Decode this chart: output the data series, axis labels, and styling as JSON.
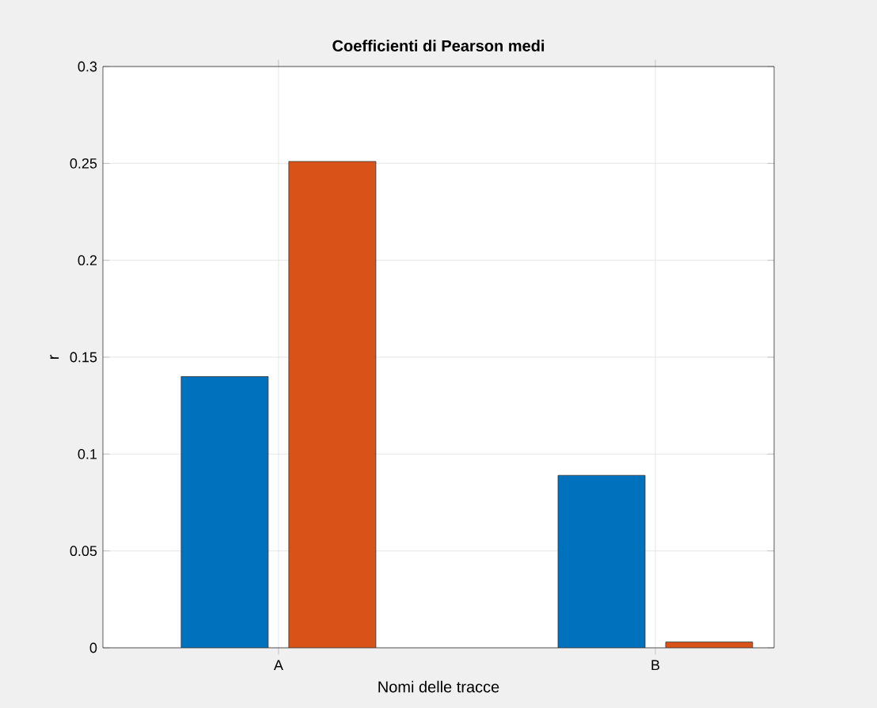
{
  "chart_data": {
    "type": "bar",
    "title": "Coefficienti di Pearson medi",
    "xlabel": "Nomi delle tracce",
    "ylabel": "r",
    "categories": [
      "A",
      "B"
    ],
    "series": [
      {
        "color": "#0072bd",
        "values": [
          0.14,
          0.089
        ]
      },
      {
        "color": "#d95319",
        "values": [
          0.251,
          0.003
        ]
      }
    ],
    "ylim": [
      0,
      0.3
    ],
    "yticks": [
      0,
      0.05,
      0.1,
      0.15,
      0.2,
      0.25,
      0.3
    ],
    "grid": true
  }
}
